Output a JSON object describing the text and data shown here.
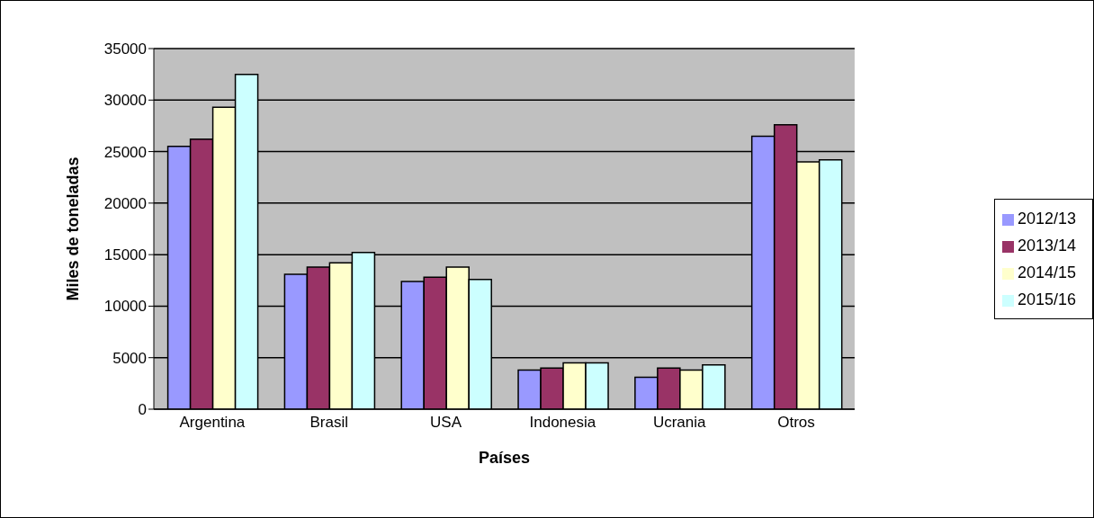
{
  "chart_data": {
    "type": "bar",
    "xlabel": "Países",
    "ylabel": "Miles de toneladas",
    "categories": [
      "Argentina",
      "Brasil",
      "USA",
      "Indonesia",
      "Ucrania",
      "Otros"
    ],
    "series": [
      {
        "name": "2012/13",
        "color": "#9999ff",
        "values": [
          25500,
          13100,
          12400,
          3800,
          3100,
          26500
        ]
      },
      {
        "name": "2013/14",
        "color": "#993366",
        "values": [
          26200,
          13800,
          12800,
          4000,
          4000,
          27600
        ]
      },
      {
        "name": "2014/15",
        "color": "#ffffcc",
        "values": [
          29300,
          14200,
          13800,
          4500,
          3800,
          24000
        ]
      },
      {
        "name": "2015/16",
        "color": "#ccffff",
        "values": [
          32500,
          15200,
          12600,
          4500,
          4300,
          24200
        ]
      }
    ],
    "ylim": [
      0,
      35000
    ],
    "yticks": [
      0,
      5000,
      10000,
      15000,
      20000,
      25000,
      30000,
      35000
    ],
    "grid": "y",
    "legend": "right"
  }
}
